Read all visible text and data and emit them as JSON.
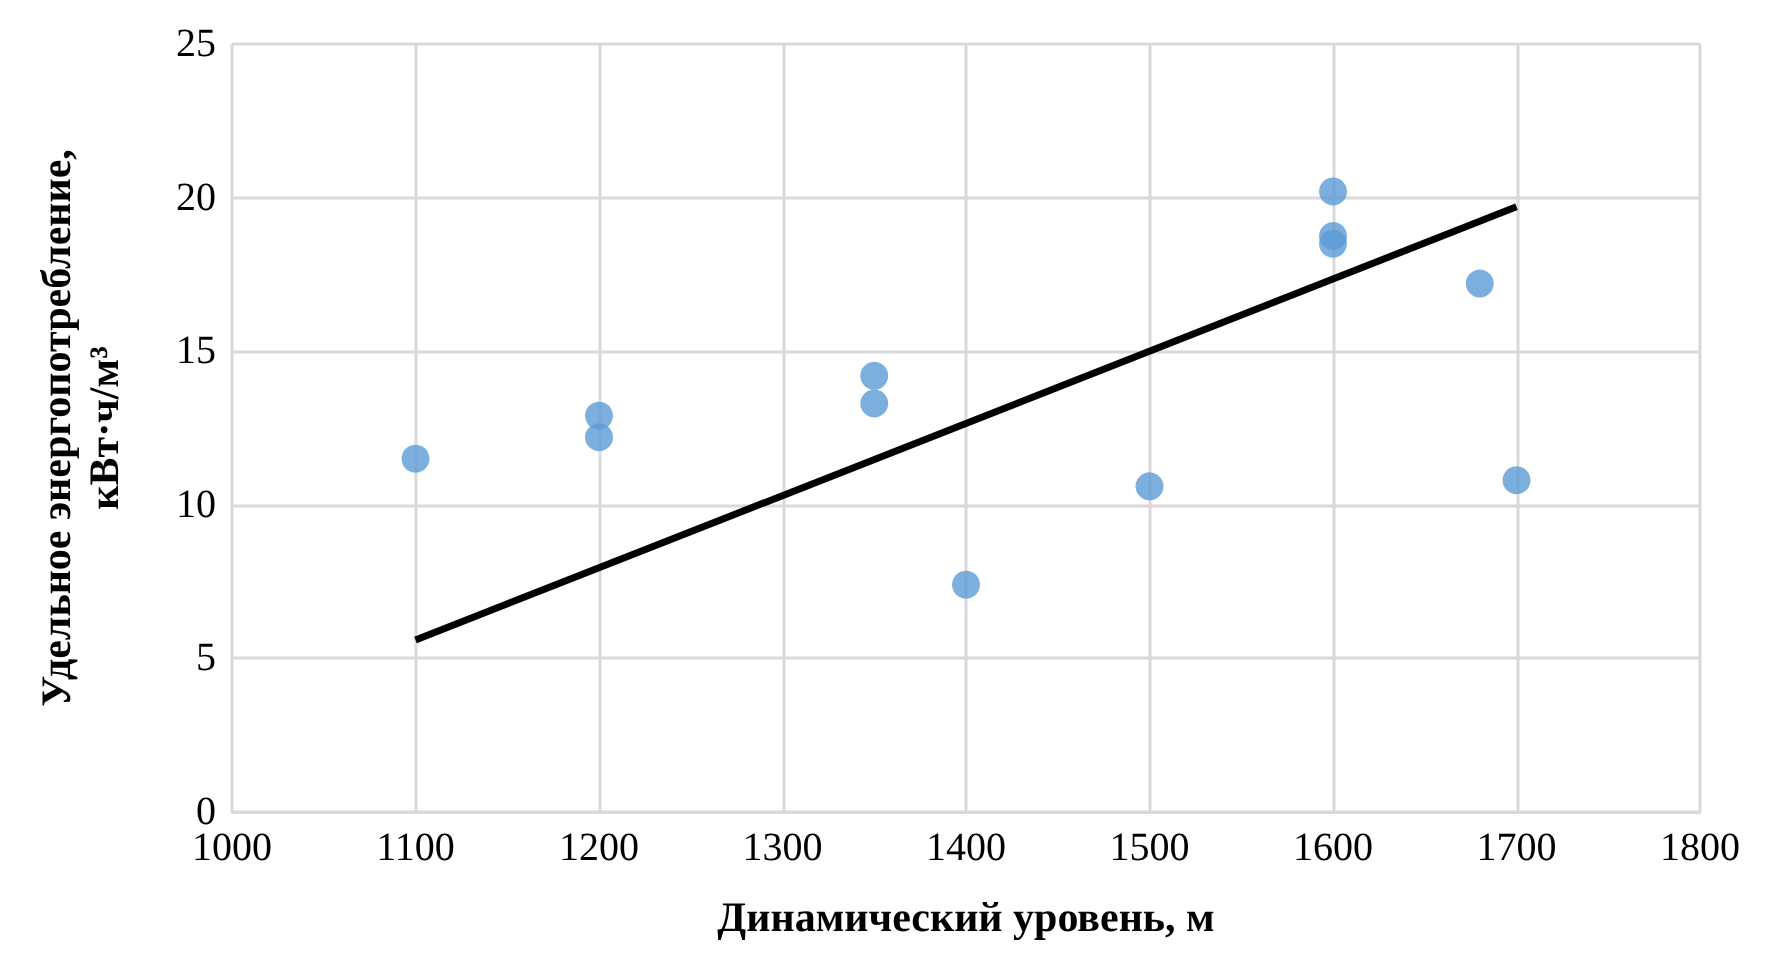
{
  "chart_data": {
    "type": "scatter",
    "xlabel": "Динамический уровень, м",
    "ylabel": "Удельное энергопотребление, кВт·ч/м³",
    "xlim": [
      1000,
      1800
    ],
    "xticks": [
      1000,
      1100,
      1200,
      1300,
      1400,
      1500,
      1600,
      1700,
      1800
    ],
    "ylim": [
      0,
      25
    ],
    "yticks": [
      0,
      5,
      10,
      15,
      20,
      25
    ],
    "grid": true,
    "series": [
      {
        "type": "scatter",
        "marker": "circle",
        "color": "#5b9bd5",
        "x": [
          1100,
          1200,
          1200,
          1350,
          1350,
          1400,
          1500,
          1600,
          1600,
          1600,
          1680,
          1700
        ],
        "values": [
          11.5,
          12.9,
          12.2,
          14.2,
          13.3,
          7.4,
          10.6,
          20.2,
          18.75,
          18.5,
          17.2,
          10.8
        ]
      },
      {
        "type": "line",
        "marker": "none",
        "color": "#000000",
        "line_style": "solid",
        "x": [
          1100,
          1700
        ],
        "values": [
          5.6,
          19.7
        ]
      }
    ]
  }
}
